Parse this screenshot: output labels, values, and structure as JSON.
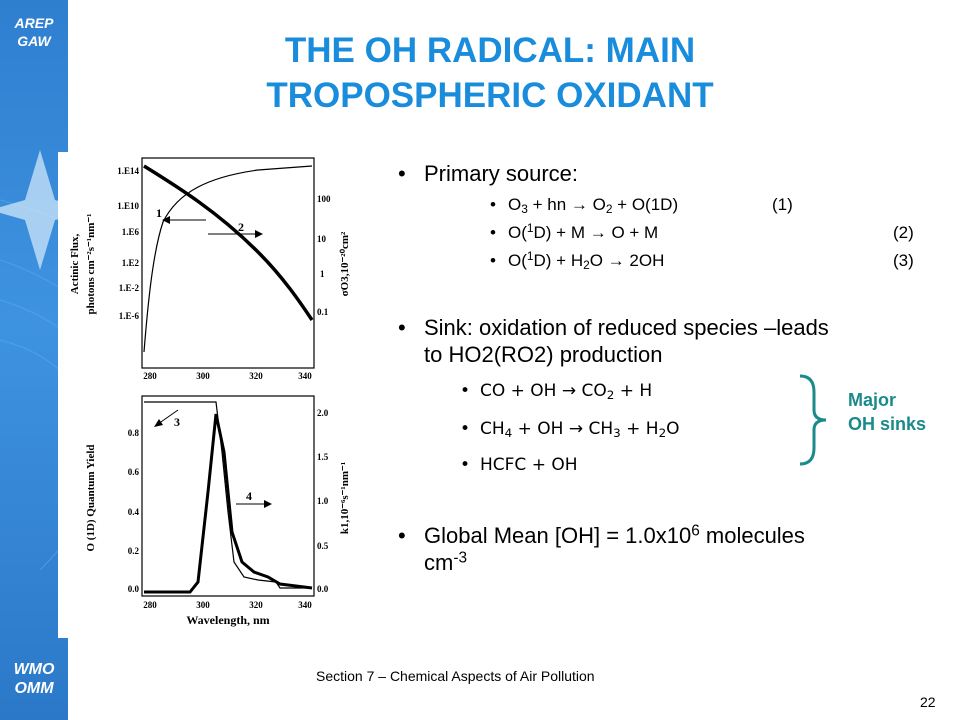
{
  "branding": {
    "logo_top_line1": "AREP",
    "logo_top_line2": "GAW",
    "logo_bottom_line1": "WMO",
    "logo_bottom_line2": "OMM"
  },
  "title": {
    "line1": "THE OH RADICAL: MAIN",
    "line2": "TROPOSPHERIC OXIDANT"
  },
  "figure": {
    "top_panel": {
      "y_left_label_line1": "Actinic Flux,",
      "y_left_label_line2": "photons cm⁻²s⁻¹nm⁻¹",
      "y_left_ticks": [
        "1.E14",
        "1.E10",
        "1.E6",
        "1.E2",
        "1.E-2",
        "1.E-6"
      ],
      "y_right_label": "σO3,10⁻²⁰cm²",
      "y_right_ticks": [
        "100",
        "10",
        "1",
        "0.1"
      ],
      "x_ticks": [
        "280",
        "300",
        "320",
        "340"
      ],
      "curve1_label": "1",
      "curve2_label": "2"
    },
    "bottom_panel": {
      "y_left_label": "O (1D) Quantum Yield",
      "y_left_ticks": [
        "0.8",
        "0.6",
        "0.4",
        "0.2",
        "0.0"
      ],
      "y_right_label": "k1,10⁻⁶s⁻¹nm⁻¹",
      "y_right_ticks": [
        "2.0",
        "1.5",
        "1.0",
        "0.5",
        "0.0"
      ],
      "x_ticks": [
        "280",
        "300",
        "320",
        "340"
      ],
      "x_label": "Wavelength, nm",
      "curve3_label": "3",
      "curve4_label": "4"
    }
  },
  "bullets": {
    "primary": "Primary source:",
    "sink": "Sink: oxidation of reduced species –leads",
    "sink_line2": "to HO2(RO2) production",
    "global_mean_prefix": "Global Mean [OH] = 1.0x10",
    "global_mean_exp": "6",
    "global_mean_suffix": " molecules",
    "global_mean_line2": "cm",
    "global_mean_line2_exp": "-3"
  },
  "reactions": {
    "r1_num": "(1)",
    "r2_num": "(2)",
    "r3_num": "(3)",
    "hn": "hn",
    "o1d": "O(1D)",
    "om": "O + M",
    "twooh": "2OH"
  },
  "sinks": {
    "hcfc": "HCFC + OH",
    "annotation_line1": "Major",
    "annotation_line2": "OH sinks"
  },
  "footer": {
    "section": "Section 7 – Chemical Aspects of Air Pollution",
    "page": "22"
  }
}
